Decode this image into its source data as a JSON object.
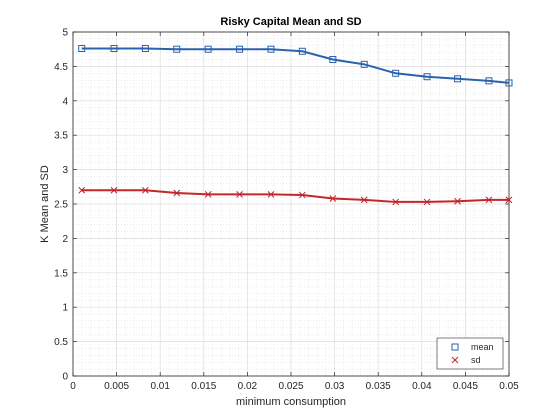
{
  "chart_data": {
    "type": "line",
    "title": "Risky Capital Mean and SD",
    "xlabel": "minimum consumption",
    "ylabel": "K Mean and SD",
    "xlim": [
      0,
      0.05
    ],
    "ylim": [
      0,
      5
    ],
    "xticks": [
      0,
      0.005,
      0.01,
      0.015,
      0.02,
      0.025,
      0.03,
      0.035,
      0.04,
      0.045,
      0.05
    ],
    "xtick_labels": [
      "0",
      "0.005",
      "0.01",
      "0.015",
      "0.02",
      "0.025",
      "0.03",
      "0.035",
      "0.04",
      "0.045",
      "0.05"
    ],
    "yticks": [
      0,
      0.5,
      1,
      1.5,
      2,
      2.5,
      3,
      3.5,
      4,
      4.5,
      5
    ],
    "ytick_labels": [
      "0",
      "0.5",
      "1",
      "1.5",
      "2",
      "2.5",
      "3",
      "3.5",
      "4",
      "4.5",
      "5"
    ],
    "grid": true,
    "minor_grid": true,
    "legend_position": "bottom-right",
    "x": [
      0.001,
      0.0047,
      0.0083,
      0.0119,
      0.0155,
      0.0191,
      0.0227,
      0.0263,
      0.0298,
      0.0334,
      0.037,
      0.0406,
      0.0441,
      0.0477,
      0.05
    ],
    "series": [
      {
        "name": "mean",
        "marker": "square",
        "color": "#2a62ae",
        "values": [
          4.76,
          4.76,
          4.76,
          4.75,
          4.75,
          4.75,
          4.75,
          4.72,
          4.6,
          4.53,
          4.4,
          4.35,
          4.32,
          4.29,
          4.26
        ]
      },
      {
        "name": "sd",
        "marker": "x",
        "color": "#c3262b",
        "values": [
          2.7,
          2.7,
          2.7,
          2.66,
          2.64,
          2.64,
          2.64,
          2.63,
          2.58,
          2.56,
          2.53,
          2.53,
          2.54,
          2.56,
          2.56
        ]
      }
    ]
  }
}
